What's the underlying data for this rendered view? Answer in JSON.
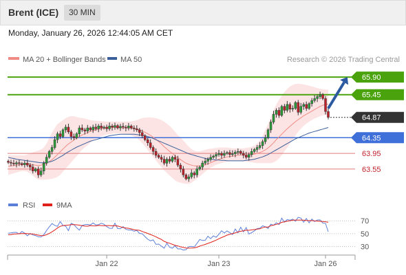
{
  "header": {
    "title": "Brent (ICE)",
    "timeframe": "30 MIN"
  },
  "date_line": "Monday, January 26, 2026 12:44:05 AM CET",
  "chart_data": [
    {
      "type": "candlestick",
      "legend": [
        {
          "label": "MA 20 + Bollinger Bands",
          "color": "#f08a84"
        },
        {
          "label": "MA 50",
          "color": "#3a5f9a"
        }
      ],
      "credit": "Research © 2026 Trading Central",
      "x_ticks": [
        {
          "label": "Jan 22",
          "index": 36
        },
        {
          "label": "Jan 23",
          "index": 77
        },
        {
          "label": "Jan 26",
          "index": 116
        }
      ],
      "y_range": [
        62.95,
        66.2
      ],
      "close": [
        63.72,
        63.7,
        63.68,
        63.71,
        63.69,
        63.66,
        63.7,
        63.65,
        63.6,
        63.5,
        63.55,
        63.4,
        63.5,
        63.7,
        63.85,
        64.0,
        64.1,
        64.3,
        64.45,
        64.38,
        64.55,
        64.62,
        64.5,
        64.38,
        64.35,
        64.45,
        64.6,
        64.55,
        64.52,
        64.6,
        64.55,
        64.62,
        64.58,
        64.65,
        64.6,
        64.62,
        64.58,
        64.65,
        64.62,
        64.66,
        64.6,
        64.64,
        64.62,
        64.6,
        64.65,
        64.6,
        64.58,
        64.55,
        64.48,
        64.4,
        64.3,
        64.22,
        64.1,
        64.0,
        63.9,
        63.85,
        63.8,
        63.7,
        63.8,
        63.75,
        63.85,
        63.8,
        63.65,
        63.55,
        63.4,
        63.3,
        63.35,
        63.45,
        63.4,
        63.55,
        63.6,
        63.7,
        63.75,
        63.8,
        63.85,
        63.88,
        63.92,
        63.95,
        63.9,
        63.95,
        63.97,
        63.92,
        63.94,
        63.98,
        64.0,
        63.95,
        63.9,
        63.85,
        63.92,
        64.0,
        64.05,
        64.1,
        64.15,
        64.25,
        64.35,
        64.55,
        64.75,
        64.95,
        65.05,
        64.92,
        65.15,
        65.05,
        65.2,
        65.08,
        65.1,
        65.25,
        65.0,
        65.15,
        65.2,
        65.1,
        65.22,
        65.3,
        65.35,
        65.4,
        65.45,
        65.35,
        65.02,
        64.87
      ],
      "ma20": [
        63.62,
        63.63,
        63.64,
        63.65,
        63.66,
        63.67,
        63.68,
        63.68,
        63.67,
        63.66,
        63.65,
        63.64,
        63.65,
        63.67,
        63.7,
        63.74,
        63.79,
        63.85,
        63.92,
        63.99,
        64.06,
        64.13,
        64.19,
        64.24,
        64.29,
        64.34,
        64.38,
        64.42,
        64.45,
        64.48,
        64.51,
        64.53,
        64.55,
        64.57,
        64.58,
        64.59,
        64.6,
        64.6,
        64.61,
        64.61,
        64.61,
        64.61,
        64.6,
        64.6,
        64.6,
        64.59,
        64.58,
        64.57,
        64.55,
        64.52,
        64.49,
        64.45,
        64.41,
        64.36,
        64.31,
        64.25,
        64.19,
        64.12,
        64.06,
        64.0,
        63.95,
        63.89,
        63.84,
        63.79,
        63.74,
        63.7,
        63.67,
        63.65,
        63.63,
        63.63,
        63.63,
        63.64,
        63.66,
        63.68,
        63.71,
        63.74,
        63.77,
        63.8,
        63.82,
        63.84,
        63.86,
        63.87,
        63.88,
        63.89,
        63.9,
        63.91,
        63.91,
        63.91,
        63.91,
        63.92,
        63.93,
        63.95,
        63.97,
        64.0,
        64.04,
        64.09,
        64.15,
        64.22,
        64.3,
        64.37,
        64.44,
        64.51,
        64.58,
        64.64,
        64.7,
        64.76,
        64.81,
        64.86,
        64.91,
        64.95,
        64.99,
        65.03,
        65.07,
        65.11,
        65.15,
        65.18,
        65.2,
        65.21
      ],
      "bb_upper": [
        63.9,
        63.9,
        63.9,
        63.9,
        63.9,
        63.9,
        63.9,
        63.92,
        63.95,
        63.98,
        64.0,
        64.02,
        64.05,
        64.1,
        64.2,
        64.35,
        64.48,
        64.6,
        64.7,
        64.75,
        64.8,
        64.85,
        64.88,
        64.9,
        64.9,
        64.88,
        64.86,
        64.85,
        64.84,
        64.82,
        64.8,
        64.79,
        64.78,
        64.78,
        64.77,
        64.77,
        64.76,
        64.76,
        64.76,
        64.76,
        64.76,
        64.76,
        64.76,
        64.76,
        64.76,
        64.77,
        64.78,
        64.8,
        64.83,
        64.85,
        64.86,
        64.87,
        64.87,
        64.86,
        64.85,
        64.83,
        64.8,
        64.76,
        64.71,
        64.65,
        64.58,
        64.5,
        64.42,
        64.35,
        64.28,
        64.2,
        64.12,
        64.06,
        64.02,
        64.0,
        64.0,
        64.02,
        64.04,
        64.06,
        64.07,
        64.08,
        64.09,
        64.1,
        64.1,
        64.1,
        64.1,
        64.09,
        64.08,
        64.08,
        64.08,
        64.08,
        64.08,
        64.09,
        64.1,
        64.12,
        64.15,
        64.2,
        64.28,
        64.4,
        64.55,
        64.7,
        64.88,
        65.05,
        65.2,
        65.32,
        65.42,
        65.52,
        65.6,
        65.66,
        65.7,
        65.72,
        65.73,
        65.72,
        65.71,
        65.7,
        65.68,
        65.66,
        65.64,
        65.62,
        65.6,
        65.59,
        65.58,
        65.58
      ],
      "bb_lower": [
        63.4,
        63.42,
        63.44,
        63.46,
        63.48,
        63.5,
        63.5,
        63.48,
        63.44,
        63.38,
        63.32,
        63.28,
        63.28,
        63.28,
        63.28,
        63.29,
        63.3,
        63.32,
        63.35,
        63.4,
        63.48,
        63.56,
        63.64,
        63.72,
        63.8,
        63.88,
        63.96,
        64.04,
        64.1,
        64.16,
        64.22,
        64.27,
        64.32,
        64.36,
        64.39,
        64.41,
        64.43,
        64.44,
        64.45,
        64.46,
        64.46,
        64.46,
        64.45,
        64.44,
        64.43,
        64.41,
        64.38,
        64.34,
        64.28,
        64.21,
        64.13,
        64.04,
        63.95,
        63.86,
        63.77,
        63.68,
        63.6,
        63.52,
        63.45,
        63.38,
        63.32,
        63.26,
        63.22,
        63.2,
        63.18,
        63.17,
        63.17,
        63.2,
        63.25,
        63.3,
        63.36,
        63.42,
        63.48,
        63.54,
        63.58,
        63.62,
        63.66,
        63.68,
        63.7,
        63.72,
        63.74,
        63.75,
        63.76,
        63.76,
        63.76,
        63.76,
        63.75,
        63.74,
        63.73,
        63.72,
        63.71,
        63.7,
        63.7,
        63.7,
        63.7,
        63.7,
        63.7,
        63.72,
        63.76,
        63.82,
        63.9,
        64.0,
        64.1,
        64.2,
        64.3,
        64.4,
        64.5,
        64.58,
        64.65,
        64.71,
        64.76,
        64.8,
        64.84,
        64.87,
        64.9,
        64.92,
        64.93,
        64.94
      ],
      "ma50": [
        63.85,
        63.83,
        63.82,
        63.8,
        63.79,
        63.78,
        63.77,
        63.76,
        63.75,
        63.74,
        63.73,
        63.72,
        63.71,
        63.71,
        63.72,
        63.73,
        63.75,
        63.78,
        63.82,
        63.86,
        63.9,
        63.95,
        63.99,
        64.03,
        64.07,
        64.11,
        64.14,
        64.17,
        64.2,
        64.23,
        64.26,
        64.28,
        64.3,
        64.32,
        64.34,
        64.36,
        64.38,
        64.4,
        64.41,
        64.42,
        64.43,
        64.44,
        64.44,
        64.44,
        64.44,
        64.44,
        64.44,
        64.43,
        64.42,
        64.41,
        64.4,
        64.38,
        64.36,
        64.33,
        64.3,
        64.27,
        64.24,
        64.21,
        64.18,
        64.15,
        64.12,
        64.09,
        64.06,
        64.03,
        64.0,
        63.97,
        63.94,
        63.92,
        63.9,
        63.88,
        63.86,
        63.84,
        63.82,
        63.81,
        63.8,
        63.79,
        63.78,
        63.78,
        63.77,
        63.77,
        63.76,
        63.76,
        63.76,
        63.76,
        63.76,
        63.76,
        63.76,
        63.77,
        63.78,
        63.79,
        63.8,
        63.82,
        63.84,
        63.86,
        63.89,
        63.92,
        63.96,
        64.0,
        64.04,
        64.08,
        64.12,
        64.16,
        64.2,
        64.24,
        64.28,
        64.32,
        64.35,
        64.38,
        64.41,
        64.44,
        64.47,
        64.49,
        64.51,
        64.53,
        64.55,
        64.57,
        64.59,
        64.61
      ],
      "levels": [
        {
          "value": 65.9,
          "label": "65.90",
          "style": "resistance"
        },
        {
          "value": 65.45,
          "label": "65.45",
          "style": "resistance"
        },
        {
          "value": 64.87,
          "label": "64.87",
          "style": "last"
        },
        {
          "value": 64.35,
          "label": "64.35",
          "style": "pivot"
        },
        {
          "value": 63.95,
          "label": "63.95",
          "style": "support"
        },
        {
          "value": 63.55,
          "label": "63.55",
          "style": "support"
        }
      ],
      "forecast_arrow": {
        "from": {
          "index": 117,
          "value": 65.1
        },
        "to": {
          "index": 124,
          "value": 65.9
        }
      },
      "colors": {
        "resistance": "#4aa30d",
        "pivot": "#3f6fd8",
        "support": "#e07a7a",
        "last": "#333333",
        "band": "#fde4e4",
        "up": "#2a9d3a",
        "down": "#c0202a"
      }
    },
    {
      "type": "line",
      "legend": [
        {
          "label": "RSI",
          "color": "#5b7fd8"
        },
        {
          "label": "9MA",
          "color": "#e0201a"
        }
      ],
      "y_range": [
        20,
        82
      ],
      "y_ticks": [
        70,
        50,
        30
      ],
      "rsi": [
        50.8,
        51.3,
        52.0,
        52.1,
        49.5,
        53.6,
        50.8,
        46.7,
        50.5,
        48.0,
        47.0,
        45.2,
        45.0,
        48.5,
        55.0,
        60.6,
        65.7,
        63.0,
        61.4,
        68.8,
        63.0,
        61.7,
        54.6,
        66.2,
        64.2,
        59.3,
        55.6,
        62.6,
        64.2,
        64.4,
        63.5,
        66.7,
        63.7,
        63.9,
        66.3,
        64.7,
        61.1,
        58.5,
        58.3,
        66.4,
        58.0,
        57.8,
        61.1,
        56.8,
        55.8,
        55.8,
        53.8,
        55.1,
        50.5,
        49.9,
        45.6,
        41.4,
        38.9,
        40.4,
        33.5,
        33.9,
        30.7,
        27.5,
        35.2,
        29.0,
        27.5,
        31.2,
        26.4,
        26.5,
        24.5,
        25.1,
        29.9,
        30.3,
        29.6,
        34.9,
        41.0,
        39.5,
        39.8,
        46.1,
        42.3,
        46.6,
        44.5,
        49.0,
        54.5,
        51.1,
        54.4,
        51.7,
        48.6,
        57.3,
        51.3,
        60.1,
        52.9,
        59.7,
        49.5,
        51.8,
        54.4,
        57.9,
        58.5,
        62.2,
        60.8,
        58.2,
        64.8,
        63.2,
        67.0,
        64.3,
        74.2,
        68.1,
        72.1,
        71.0,
        72.6,
        69.4,
        75.5,
        74.2,
        67.8,
        73.7,
        66.9,
        72.8,
        68.9,
        71.3,
        71.4,
        66.6,
        66.1,
        53.0
      ],
      "ma9": [
        48.3,
        48.6,
        49.5,
        49.7,
        50.0,
        50.3,
        50.4,
        50.3,
        49.7,
        49.7,
        48.6,
        47.8,
        47.1,
        47.0,
        48.5,
        50.5,
        52.9,
        55.7,
        58.9,
        61.5,
        62.6,
        63.1,
        63.4,
        64.2,
        64.2,
        63.8,
        63.3,
        62.4,
        61.8,
        61.6,
        62.7,
        62.2,
        62.1,
        63.0,
        62.6,
        62.3,
        62.7,
        62.6,
        62.2,
        62.4,
        61.9,
        60.8,
        59.6,
        58.9,
        58.4,
        57.4,
        56.2,
        55.7,
        55.3,
        53.5,
        52.0,
        50.5,
        48.8,
        47.0,
        45.2,
        43.0,
        41.1,
        38.2,
        36.5,
        35.2,
        33.5,
        31.9,
        31.0,
        29.6,
        28.7,
        27.8,
        27.6,
        27.7,
        28.0,
        29.0,
        30.7,
        32.1,
        33.4,
        35.0,
        36.5,
        38.2,
        40.0,
        42.1,
        44.0,
        45.8,
        47.8,
        49.0,
        50.3,
        51.2,
        52.7,
        53.8,
        54.4,
        55.5,
        55.3,
        55.9,
        56.4,
        57.1,
        57.6,
        59.3,
        60.4,
        60.4,
        62.4,
        63.3,
        64.6,
        65.6,
        67.7,
        68.4,
        69.6,
        70.1,
        71.0,
        71.2,
        71.2,
        71.2,
        71.0,
        70.6,
        70.3,
        70.3,
        69.9,
        69.7,
        69.3,
        68.8,
        68.5,
        67.9
      ]
    }
  ]
}
